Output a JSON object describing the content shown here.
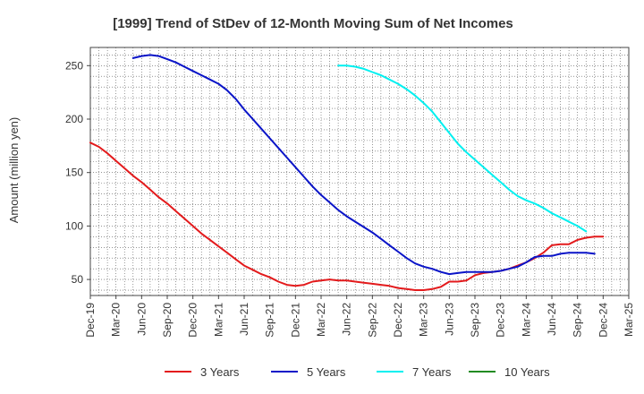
{
  "chart_data": {
    "type": "line",
    "title": "[1999]  Trend of StDev of 12-Month Moving Sum of Net Incomes",
    "ylabel": "Amount (million yen)",
    "xlabel": "",
    "ylim": [
      35,
      267
    ],
    "yticks": [
      50,
      100,
      150,
      200,
      250
    ],
    "xrange": [
      "2019-12",
      "2025-03"
    ],
    "xticks": [
      "Dec-19",
      "Mar-20",
      "Jun-20",
      "Sep-20",
      "Dec-20",
      "Mar-21",
      "Jun-21",
      "Sep-21",
      "Dec-21",
      "Mar-22",
      "Jun-22",
      "Sep-22",
      "Dec-22",
      "Mar-23",
      "Jun-23",
      "Sep-23",
      "Dec-23",
      "Mar-24",
      "Jun-24",
      "Sep-24",
      "Dec-24",
      "Mar-25"
    ],
    "grid": true,
    "legend_position": "bottom",
    "series": [
      {
        "name": "3 Years",
        "color": "#e31a1c",
        "points": [
          [
            "2019-12",
            178
          ],
          [
            "2020-01",
            174
          ],
          [
            "2020-02",
            168
          ],
          [
            "2020-03",
            161
          ],
          [
            "2020-04",
            154
          ],
          [
            "2020-05",
            147
          ],
          [
            "2020-06",
            141
          ],
          [
            "2020-07",
            134
          ],
          [
            "2020-08",
            127
          ],
          [
            "2020-09",
            121
          ],
          [
            "2020-10",
            114
          ],
          [
            "2020-11",
            107
          ],
          [
            "2020-12",
            100
          ],
          [
            "2021-01",
            93
          ],
          [
            "2021-02",
            87
          ],
          [
            "2021-03",
            81
          ],
          [
            "2021-04",
            75
          ],
          [
            "2021-05",
            69
          ],
          [
            "2021-06",
            63
          ],
          [
            "2021-07",
            59
          ],
          [
            "2021-08",
            55
          ],
          [
            "2021-09",
            52
          ],
          [
            "2021-10",
            48
          ],
          [
            "2021-11",
            45
          ],
          [
            "2021-12",
            44
          ],
          [
            "2022-01",
            45
          ],
          [
            "2022-02",
            48
          ],
          [
            "2022-03",
            49
          ],
          [
            "2022-04",
            50
          ],
          [
            "2022-05",
            49
          ],
          [
            "2022-06",
            49
          ],
          [
            "2022-07",
            48
          ],
          [
            "2022-08",
            47
          ],
          [
            "2022-09",
            46
          ],
          [
            "2022-10",
            45
          ],
          [
            "2022-11",
            44
          ],
          [
            "2022-12",
            42
          ],
          [
            "2023-01",
            41
          ],
          [
            "2023-02",
            40
          ],
          [
            "2023-03",
            40
          ],
          [
            "2023-04",
            41
          ],
          [
            "2023-05",
            43
          ],
          [
            "2023-06",
            48
          ],
          [
            "2023-07",
            48
          ],
          [
            "2023-08",
            49
          ],
          [
            "2023-09",
            54
          ],
          [
            "2023-10",
            56
          ],
          [
            "2023-11",
            57
          ],
          [
            "2023-12",
            58
          ],
          [
            "2024-01",
            60
          ],
          [
            "2024-02",
            63
          ],
          [
            "2024-03",
            66
          ],
          [
            "2024-04",
            70
          ],
          [
            "2024-05",
            75
          ],
          [
            "2024-06",
            82
          ],
          [
            "2024-07",
            83
          ],
          [
            "2024-08",
            83
          ],
          [
            "2024-09",
            87
          ],
          [
            "2024-10",
            89
          ],
          [
            "2024-11",
            90
          ],
          [
            "2024-12",
            90
          ]
        ]
      },
      {
        "name": "5 Years",
        "color": "#0a14c8",
        "points": [
          [
            "2020-05",
            257
          ],
          [
            "2020-06",
            259
          ],
          [
            "2020-07",
            260
          ],
          [
            "2020-08",
            259
          ],
          [
            "2020-09",
            256
          ],
          [
            "2020-10",
            253
          ],
          [
            "2020-11",
            249
          ],
          [
            "2020-12",
            245
          ],
          [
            "2021-01",
            241
          ],
          [
            "2021-02",
            237
          ],
          [
            "2021-03",
            233
          ],
          [
            "2021-04",
            227
          ],
          [
            "2021-05",
            219
          ],
          [
            "2021-06",
            209
          ],
          [
            "2021-07",
            200
          ],
          [
            "2021-08",
            191
          ],
          [
            "2021-09",
            182
          ],
          [
            "2021-10",
            173
          ],
          [
            "2021-11",
            164
          ],
          [
            "2021-12",
            155
          ],
          [
            "2022-01",
            146
          ],
          [
            "2022-02",
            137
          ],
          [
            "2022-03",
            129
          ],
          [
            "2022-04",
            122
          ],
          [
            "2022-05",
            115
          ],
          [
            "2022-06",
            109
          ],
          [
            "2022-07",
            104
          ],
          [
            "2022-08",
            99
          ],
          [
            "2022-09",
            94
          ],
          [
            "2022-10",
            88
          ],
          [
            "2022-11",
            82
          ],
          [
            "2022-12",
            76
          ],
          [
            "2023-01",
            70
          ],
          [
            "2023-02",
            65
          ],
          [
            "2023-03",
            62
          ],
          [
            "2023-04",
            60
          ],
          [
            "2023-05",
            57
          ],
          [
            "2023-06",
            55
          ],
          [
            "2023-07",
            56
          ],
          [
            "2023-08",
            57
          ],
          [
            "2023-09",
            57
          ],
          [
            "2023-10",
            57
          ],
          [
            "2023-11",
            57
          ],
          [
            "2023-12",
            58
          ],
          [
            "2024-01",
            60
          ],
          [
            "2024-02",
            62
          ],
          [
            "2024-03",
            66
          ],
          [
            "2024-04",
            71
          ],
          [
            "2024-05",
            72
          ],
          [
            "2024-06",
            72
          ],
          [
            "2024-07",
            74
          ],
          [
            "2024-08",
            75
          ],
          [
            "2024-09",
            75
          ],
          [
            "2024-10",
            75
          ],
          [
            "2024-11",
            74
          ]
        ]
      },
      {
        "name": "7 Years",
        "color": "#00f0f0",
        "points": [
          [
            "2022-05",
            250
          ],
          [
            "2022-06",
            250
          ],
          [
            "2022-07",
            249
          ],
          [
            "2022-08",
            247
          ],
          [
            "2022-09",
            244
          ],
          [
            "2022-10",
            241
          ],
          [
            "2022-11",
            237
          ],
          [
            "2022-12",
            233
          ],
          [
            "2023-01",
            228
          ],
          [
            "2023-02",
            222
          ],
          [
            "2023-03",
            215
          ],
          [
            "2023-04",
            207
          ],
          [
            "2023-05",
            197
          ],
          [
            "2023-06",
            187
          ],
          [
            "2023-07",
            177
          ],
          [
            "2023-08",
            169
          ],
          [
            "2023-09",
            162
          ],
          [
            "2023-10",
            155
          ],
          [
            "2023-11",
            148
          ],
          [
            "2023-12",
            141
          ],
          [
            "2024-01",
            134
          ],
          [
            "2024-02",
            128
          ],
          [
            "2024-03",
            124
          ],
          [
            "2024-04",
            121
          ],
          [
            "2024-05",
            117
          ],
          [
            "2024-06",
            112
          ],
          [
            "2024-07",
            108
          ],
          [
            "2024-08",
            104
          ],
          [
            "2024-09",
            100
          ],
          [
            "2024-10",
            95
          ]
        ]
      },
      {
        "name": "10 Years",
        "color": "#228b22",
        "points": []
      }
    ]
  }
}
